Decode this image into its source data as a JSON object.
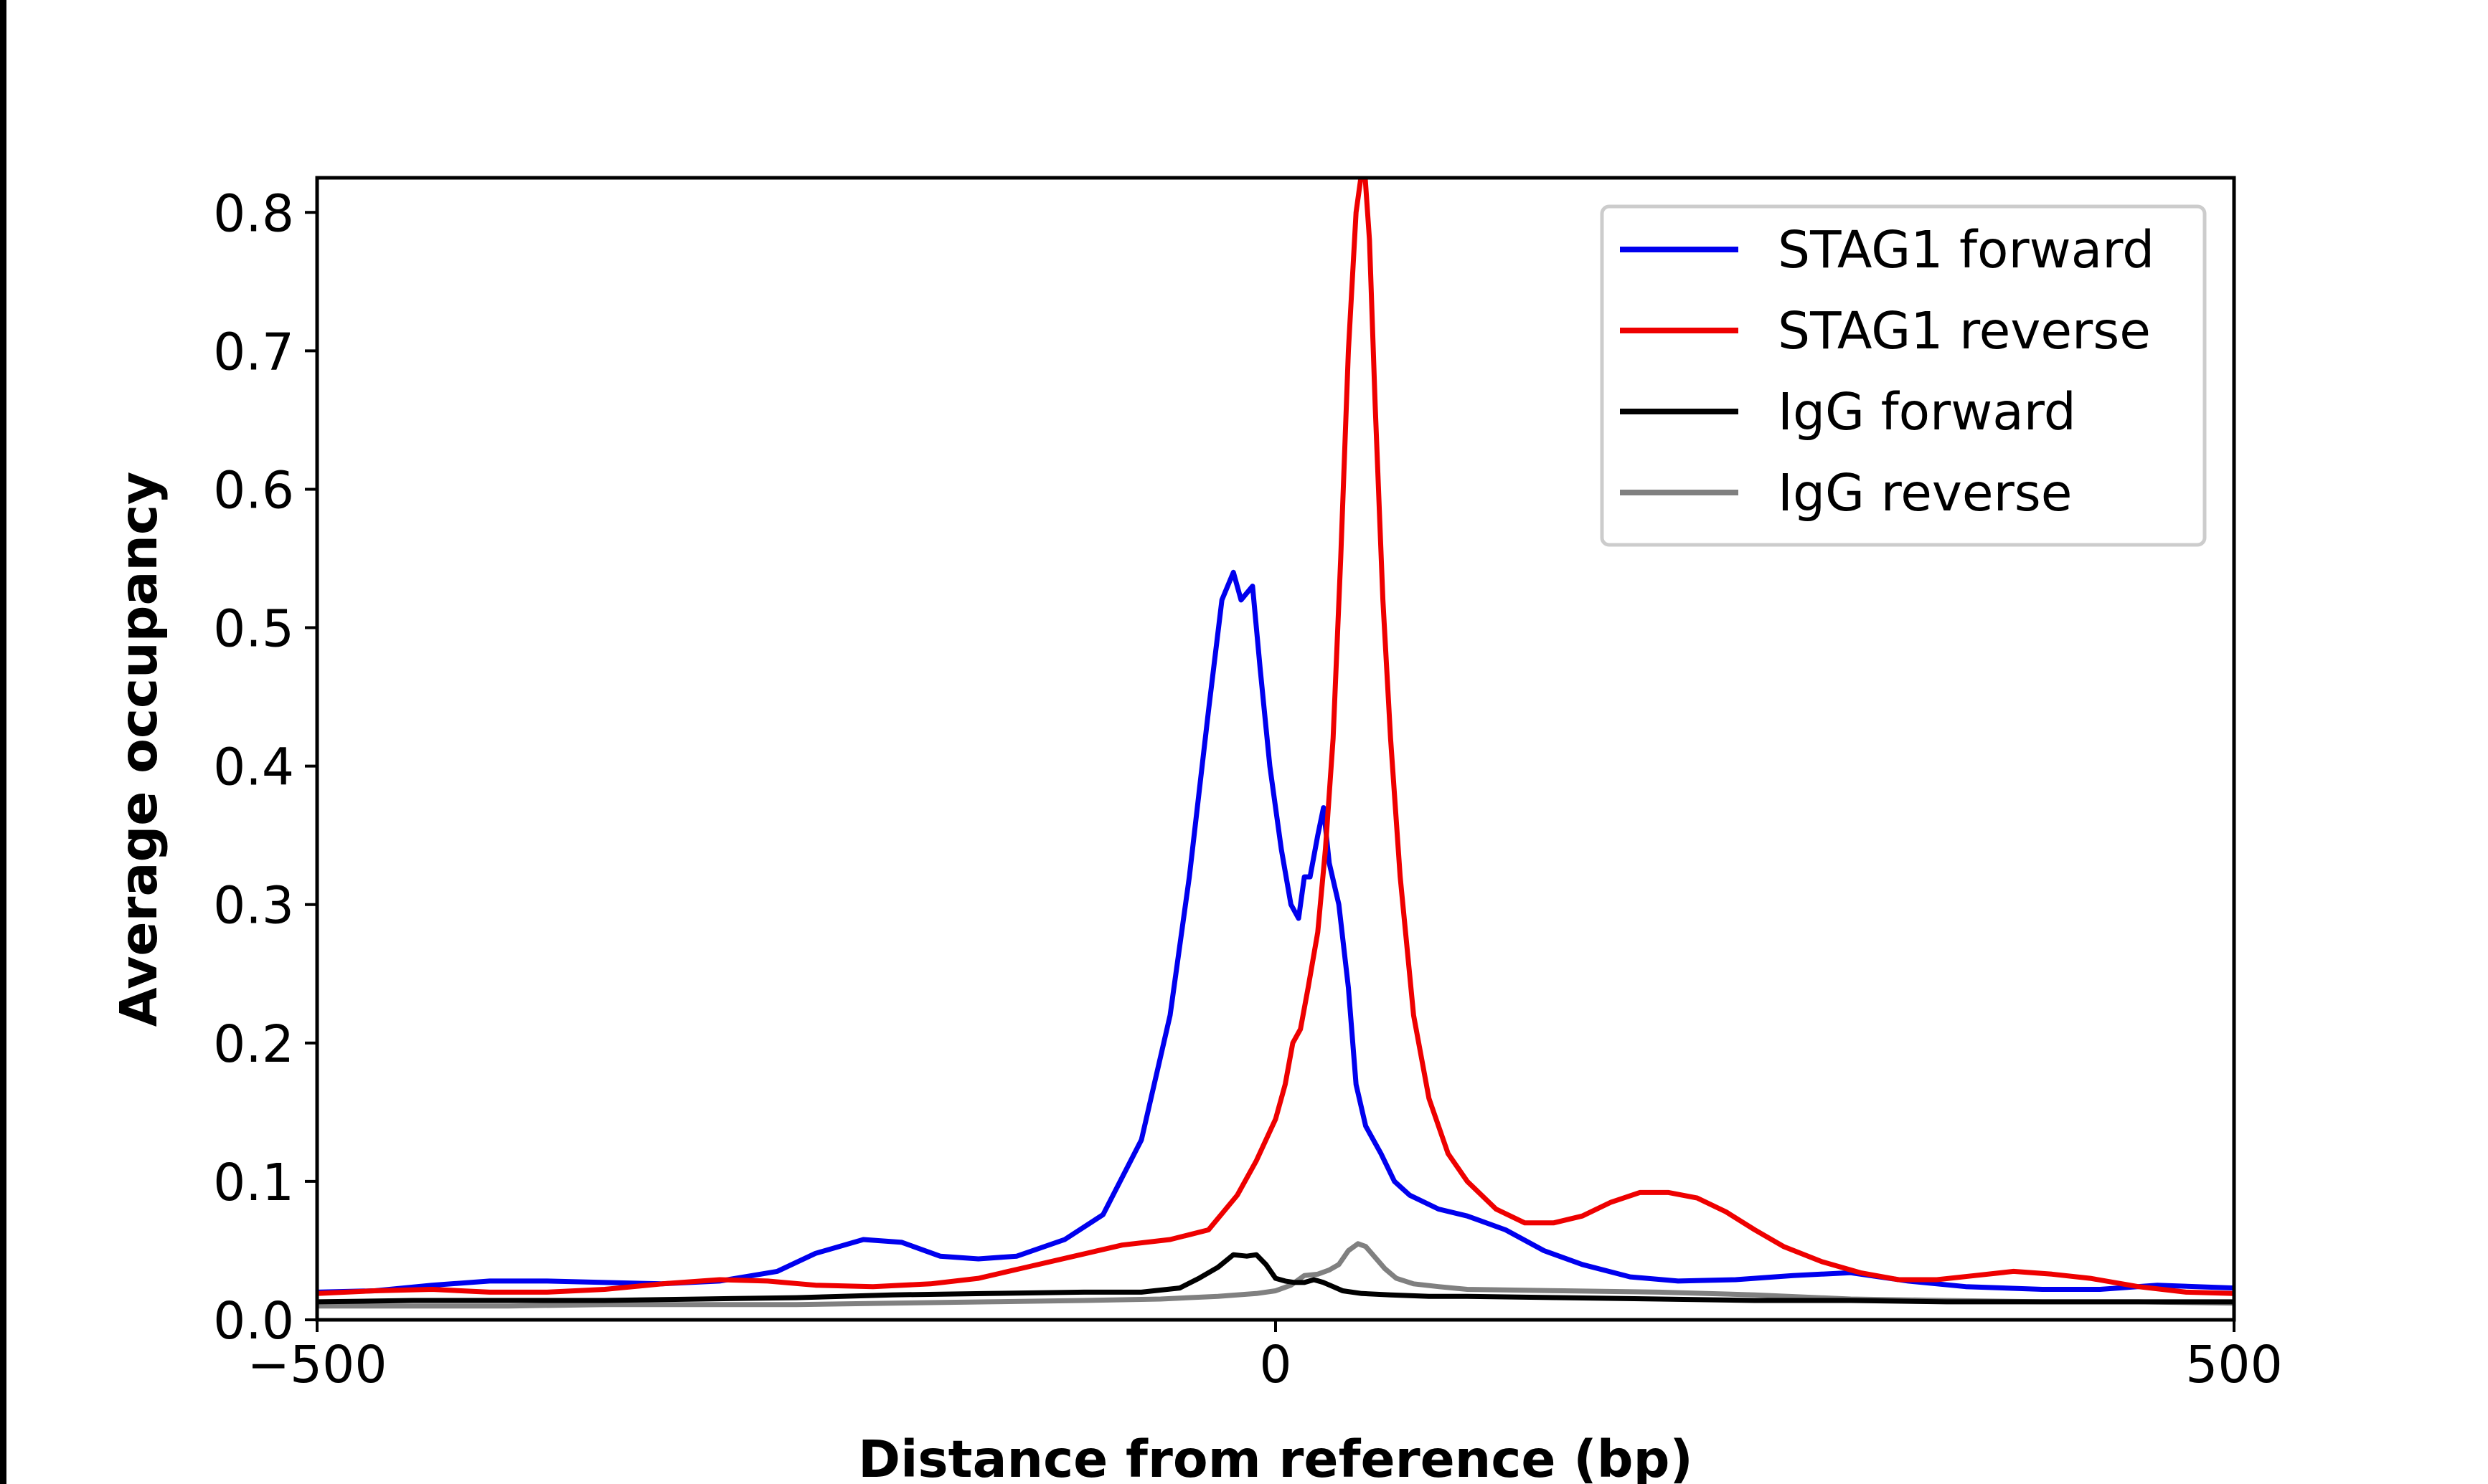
{
  "chart_data": {
    "type": "line",
    "title": "",
    "xlabel": "Distance from reference (bp)",
    "ylabel": "Average occupancy",
    "xlim": [
      -500,
      500
    ],
    "ylim": [
      0,
      0.825
    ],
    "x_ticks": [
      -500,
      0,
      500
    ],
    "x_tick_labels": [
      "−500",
      "0",
      "500"
    ],
    "y_ticks": [
      0,
      0.1,
      0.2,
      0.3,
      0.4,
      0.5,
      0.6,
      0.7,
      0.8
    ],
    "y_tick_labels": [
      "0.0",
      "0.1",
      "0.2",
      "0.3",
      "0.4",
      "0.5",
      "0.6",
      "0.7",
      "0.8"
    ],
    "grid": false,
    "legend_position": "top-right",
    "series": [
      {
        "name": "STAG1 forward",
        "color": "#0000ee",
        "points": [
          [
            -500,
            0.02
          ],
          [
            -470,
            0.021
          ],
          [
            -440,
            0.025
          ],
          [
            -410,
            0.028
          ],
          [
            -380,
            0.028
          ],
          [
            -350,
            0.027
          ],
          [
            -320,
            0.026
          ],
          [
            -290,
            0.028
          ],
          [
            -260,
            0.035
          ],
          [
            -240,
            0.048
          ],
          [
            -215,
            0.058
          ],
          [
            -195,
            0.056
          ],
          [
            -175,
            0.046
          ],
          [
            -155,
            0.044
          ],
          [
            -135,
            0.046
          ],
          [
            -110,
            0.058
          ],
          [
            -90,
            0.076
          ],
          [
            -70,
            0.13
          ],
          [
            -55,
            0.22
          ],
          [
            -45,
            0.32
          ],
          [
            -35,
            0.44
          ],
          [
            -28,
            0.52
          ],
          [
            -22,
            0.54
          ],
          [
            -18,
            0.52
          ],
          [
            -12,
            0.53
          ],
          [
            -8,
            0.47
          ],
          [
            -3,
            0.4
          ],
          [
            3,
            0.34
          ],
          [
            8,
            0.3
          ],
          [
            12,
            0.29
          ],
          [
            15,
            0.32
          ],
          [
            18,
            0.32
          ],
          [
            22,
            0.35
          ],
          [
            25,
            0.37
          ],
          [
            28,
            0.33
          ],
          [
            33,
            0.3
          ],
          [
            38,
            0.24
          ],
          [
            42,
            0.17
          ],
          [
            47,
            0.14
          ],
          [
            55,
            0.12
          ],
          [
            62,
            0.1
          ],
          [
            70,
            0.09
          ],
          [
            85,
            0.08
          ],
          [
            100,
            0.075
          ],
          [
            120,
            0.065
          ],
          [
            140,
            0.05
          ],
          [
            160,
            0.04
          ],
          [
            185,
            0.031
          ],
          [
            210,
            0.028
          ],
          [
            240,
            0.029
          ],
          [
            270,
            0.032
          ],
          [
            300,
            0.034
          ],
          [
            330,
            0.028
          ],
          [
            360,
            0.024
          ],
          [
            400,
            0.022
          ],
          [
            430,
            0.022
          ],
          [
            460,
            0.025
          ],
          [
            500,
            0.023
          ]
        ]
      },
      {
        "name": "STAG1 reverse",
        "color": "#ee0000",
        "points": [
          [
            -500,
            0.019
          ],
          [
            -470,
            0.021
          ],
          [
            -440,
            0.022
          ],
          [
            -410,
            0.02
          ],
          [
            -380,
            0.02
          ],
          [
            -350,
            0.022
          ],
          [
            -320,
            0.026
          ],
          [
            -290,
            0.029
          ],
          [
            -265,
            0.028
          ],
          [
            -240,
            0.025
          ],
          [
            -210,
            0.024
          ],
          [
            -180,
            0.026
          ],
          [
            -155,
            0.03
          ],
          [
            -130,
            0.038
          ],
          [
            -105,
            0.046
          ],
          [
            -80,
            0.054
          ],
          [
            -55,
            0.058
          ],
          [
            -35,
            0.065
          ],
          [
            -20,
            0.09
          ],
          [
            -10,
            0.115
          ],
          [
            -5,
            0.13
          ],
          [
            0,
            0.145
          ],
          [
            5,
            0.17
          ],
          [
            9,
            0.2
          ],
          [
            13,
            0.21
          ],
          [
            17,
            0.24
          ],
          [
            22,
            0.28
          ],
          [
            26,
            0.34
          ],
          [
            30,
            0.42
          ],
          [
            34,
            0.55
          ],
          [
            38,
            0.7
          ],
          [
            42,
            0.8
          ],
          [
            46,
            0.84
          ],
          [
            49,
            0.78
          ],
          [
            52,
            0.66
          ],
          [
            56,
            0.52
          ],
          [
            60,
            0.42
          ],
          [
            65,
            0.32
          ],
          [
            72,
            0.22
          ],
          [
            80,
            0.16
          ],
          [
            90,
            0.12
          ],
          [
            100,
            0.1
          ],
          [
            115,
            0.08
          ],
          [
            130,
            0.07
          ],
          [
            145,
            0.07
          ],
          [
            160,
            0.075
          ],
          [
            175,
            0.085
          ],
          [
            190,
            0.092
          ],
          [
            205,
            0.092
          ],
          [
            220,
            0.088
          ],
          [
            235,
            0.078
          ],
          [
            250,
            0.065
          ],
          [
            265,
            0.053
          ],
          [
            285,
            0.042
          ],
          [
            305,
            0.034
          ],
          [
            325,
            0.029
          ],
          [
            345,
            0.029
          ],
          [
            365,
            0.032
          ],
          [
            385,
            0.035
          ],
          [
            405,
            0.033
          ],
          [
            425,
            0.03
          ],
          [
            450,
            0.024
          ],
          [
            475,
            0.02
          ],
          [
            500,
            0.019
          ]
        ]
      },
      {
        "name": "IgG forward",
        "color": "#000000",
        "points": [
          [
            -500,
            0.013
          ],
          [
            -450,
            0.014
          ],
          [
            -400,
            0.014
          ],
          [
            -350,
            0.014
          ],
          [
            -300,
            0.015
          ],
          [
            -250,
            0.016
          ],
          [
            -200,
            0.018
          ],
          [
            -150,
            0.019
          ],
          [
            -100,
            0.02
          ],
          [
            -70,
            0.02
          ],
          [
            -50,
            0.023
          ],
          [
            -40,
            0.03
          ],
          [
            -30,
            0.038
          ],
          [
            -22,
            0.047
          ],
          [
            -15,
            0.046
          ],
          [
            -10,
            0.047
          ],
          [
            -5,
            0.04
          ],
          [
            0,
            0.03
          ],
          [
            5,
            0.028
          ],
          [
            10,
            0.027
          ],
          [
            15,
            0.027
          ],
          [
            20,
            0.029
          ],
          [
            25,
            0.027
          ],
          [
            30,
            0.024
          ],
          [
            35,
            0.021
          ],
          [
            45,
            0.019
          ],
          [
            60,
            0.018
          ],
          [
            80,
            0.017
          ],
          [
            100,
            0.017
          ],
          [
            150,
            0.016
          ],
          [
            200,
            0.015
          ],
          [
            250,
            0.014
          ],
          [
            300,
            0.014
          ],
          [
            350,
            0.013
          ],
          [
            400,
            0.013
          ],
          [
            450,
            0.013
          ],
          [
            500,
            0.013
          ]
        ]
      },
      {
        "name": "IgG reverse",
        "color": "#808080",
        "points": [
          [
            -500,
            0.01
          ],
          [
            -450,
            0.01
          ],
          [
            -400,
            0.01
          ],
          [
            -350,
            0.011
          ],
          [
            -300,
            0.011
          ],
          [
            -250,
            0.011
          ],
          [
            -200,
            0.012
          ],
          [
            -150,
            0.013
          ],
          [
            -100,
            0.014
          ],
          [
            -60,
            0.015
          ],
          [
            -30,
            0.017
          ],
          [
            -10,
            0.019
          ],
          [
            0,
            0.021
          ],
          [
            8,
            0.025
          ],
          [
            15,
            0.032
          ],
          [
            22,
            0.033
          ],
          [
            28,
            0.036
          ],
          [
            33,
            0.04
          ],
          [
            38,
            0.05
          ],
          [
            43,
            0.055
          ],
          [
            47,
            0.053
          ],
          [
            52,
            0.045
          ],
          [
            57,
            0.037
          ],
          [
            63,
            0.03
          ],
          [
            72,
            0.026
          ],
          [
            85,
            0.024
          ],
          [
            100,
            0.022
          ],
          [
            150,
            0.021
          ],
          [
            200,
            0.02
          ],
          [
            250,
            0.018
          ],
          [
            300,
            0.015
          ],
          [
            350,
            0.014
          ],
          [
            400,
            0.013
          ],
          [
            450,
            0.013
          ],
          [
            500,
            0.012
          ]
        ]
      }
    ]
  }
}
